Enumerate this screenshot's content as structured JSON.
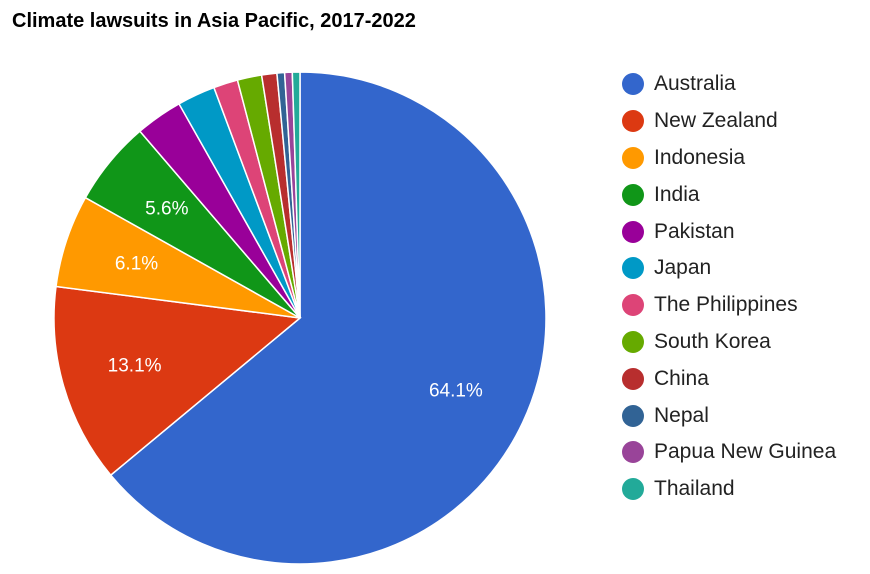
{
  "chart_data": {
    "type": "pie",
    "title": "Climate lawsuits in Asia Pacific, 2017-2022",
    "legend_position": "right",
    "series": [
      {
        "name": "Australia",
        "value": 64.1,
        "label": "64.1%",
        "color": "#3366cc"
      },
      {
        "name": "New Zealand",
        "value": 13.1,
        "label": "13.1%",
        "color": "#dc3912"
      },
      {
        "name": "Indonesia",
        "value": 6.1,
        "label": "6.1%",
        "color": "#ff9900"
      },
      {
        "name": "India",
        "value": 5.6,
        "label": "5.6%",
        "color": "#109618"
      },
      {
        "name": "Pakistan",
        "value": 3.1,
        "label": "",
        "color": "#990099"
      },
      {
        "name": "Japan",
        "value": 2.5,
        "label": "",
        "color": "#0099c6"
      },
      {
        "name": "The Philippines",
        "value": 1.6,
        "label": "",
        "color": "#dd4477"
      },
      {
        "name": "South Korea",
        "value": 1.6,
        "label": "",
        "color": "#66aa00"
      },
      {
        "name": "China",
        "value": 1.0,
        "label": "",
        "color": "#b82e2e"
      },
      {
        "name": "Nepal",
        "value": 0.5,
        "label": "",
        "color": "#316395"
      },
      {
        "name": "Papua New Guinea",
        "value": 0.5,
        "label": "",
        "color": "#994499"
      },
      {
        "name": "Thailand",
        "value": 0.5,
        "label": "",
        "color": "#22aa99"
      }
    ]
  }
}
